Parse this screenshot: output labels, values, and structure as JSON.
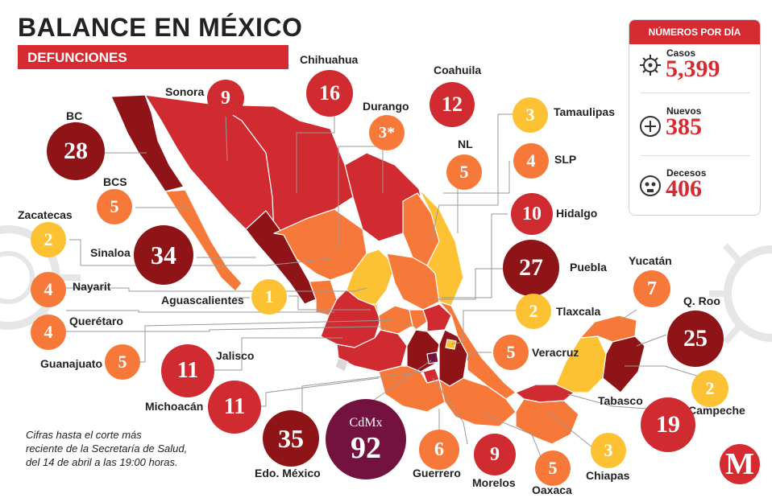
{
  "header": {
    "title_light": "BALANCE EN ",
    "title_bold": "MÉXICO",
    "subtitle": "DEFUNCIONES"
  },
  "panel": {
    "title": "NÚMEROS POR DÍA",
    "stats": [
      {
        "label": "Casos",
        "value": "5,399",
        "icon": "virus-icon"
      },
      {
        "label": "Nuevos",
        "value": "385",
        "icon": "plus-icon"
      },
      {
        "label": "Decesos",
        "value": "406",
        "icon": "skull-icon"
      }
    ]
  },
  "note": {
    "line1": "Cifras hasta el corte más",
    "line2": "reciente de la Secretaría de Salud,",
    "line3": "del 14 de abril a las 19:00 horas."
  },
  "logo": "M",
  "colors": {
    "accent": "#d62b30",
    "dark": "#8e1417",
    "red": "#d02b30",
    "orange": "#f6793a",
    "yellow": "#fcc233",
    "cdmx": "#74123f"
  },
  "states": [
    {
      "name": "BC",
      "value": "28"
    },
    {
      "name": "Sonora",
      "value": "9"
    },
    {
      "name": "Chihuahua",
      "value": "16"
    },
    {
      "name": "Coahuila",
      "value": "12"
    },
    {
      "name": "Durango",
      "value": "3*"
    },
    {
      "name": "Tamaulipas",
      "value": "3"
    },
    {
      "name": "NL",
      "value": "5"
    },
    {
      "name": "SLP",
      "value": "4"
    },
    {
      "name": "BCS",
      "value": "5"
    },
    {
      "name": "Zacatecas",
      "value": "2"
    },
    {
      "name": "Hidalgo",
      "value": "10"
    },
    {
      "name": "Sinaloa",
      "value": "34"
    },
    {
      "name": "Puebla",
      "value": "27"
    },
    {
      "name": "Yucatán",
      "value": "7"
    },
    {
      "name": "Nayarit",
      "value": "4"
    },
    {
      "name": "Aguascalientes",
      "value": "1"
    },
    {
      "name": "Tlaxcala",
      "value": "2"
    },
    {
      "name": "Q. Roo",
      "value": "25"
    },
    {
      "name": "Querétaro",
      "value": "4"
    },
    {
      "name": "Guanajuato",
      "value": "5"
    },
    {
      "name": "Jalisco",
      "value": "11"
    },
    {
      "name": "Veracruz",
      "value": "5"
    },
    {
      "name": "Campeche",
      "value": "2"
    },
    {
      "name": "Tabasco",
      "value": "19"
    },
    {
      "name": "Michoacán",
      "value": "11"
    },
    {
      "name": "CdMx",
      "value": "92"
    },
    {
      "name": "Edo. México",
      "value": "35"
    },
    {
      "name": "Guerrero",
      "value": "6"
    },
    {
      "name": "Morelos",
      "value": "9"
    },
    {
      "name": "Oaxaca",
      "value": "5"
    },
    {
      "name": "Chiapas",
      "value": "3"
    }
  ]
}
